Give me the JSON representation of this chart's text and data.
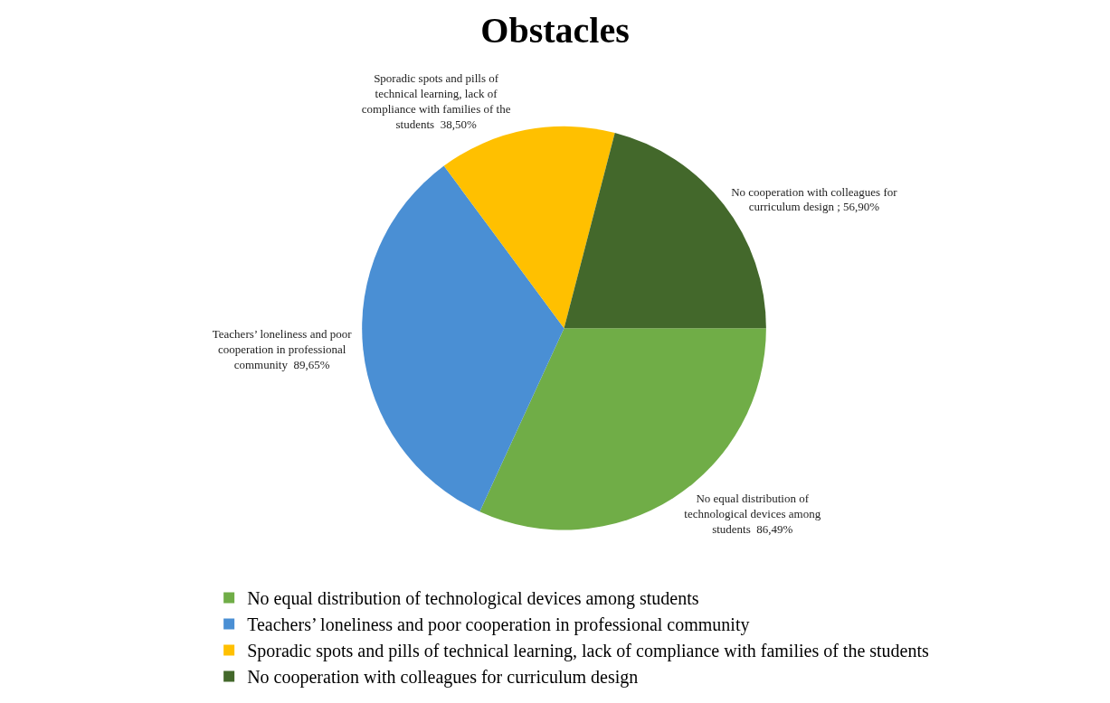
{
  "chart_data": {
    "type": "pie",
    "title": "Obstacles",
    "categories": [
      "No equal distribution of technological devices among students",
      "Teachers’ loneliness and poor cooperation in professional community",
      "Sporadic spots and pills of technical learning, lack of compliance with families of the students",
      "No cooperation with colleagues for curriculum design"
    ],
    "values": [
      86.49,
      89.65,
      38.5,
      56.9
    ],
    "value_labels": [
      "No equal distribution of technological devices among students  86,49%",
      "Teachers’ loneliness and poor cooperation in professional community  89,65%",
      "Sporadic spots and pills of technical learning, lack of compliance with families of the students  38,50%",
      "No cooperation with colleagues for curriculum design ; 56,90%"
    ],
    "colors": [
      "#70ad47",
      "#4a8fd4",
      "#ffc000",
      "#43682b"
    ],
    "legend": "bottom left"
  }
}
